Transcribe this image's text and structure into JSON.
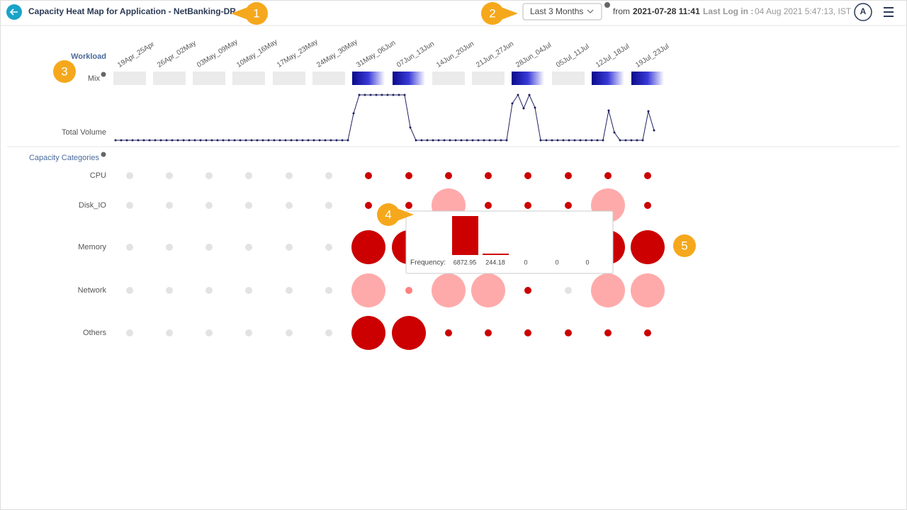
{
  "header": {
    "title": "Capacity Heat Map for Application - NetBanking-DR",
    "range": "Last 3 Months",
    "from_label": "from",
    "from": "2021-07-28 11:41",
    "last_login_label": "Last Log in :",
    "last_login": "04 Aug 2021 5:47:13, IST",
    "avatar": "A"
  },
  "callouts": [
    "1",
    "2",
    "3",
    "4",
    "5"
  ],
  "workload": {
    "title": "Workload",
    "mix": "Mix",
    "total_volume": "Total Volume",
    "weeks": [
      "19Apr_25Apr",
      "26Apr_02May",
      "03May_09May",
      "10May_16May",
      "17May_23May",
      "24May_30May",
      "31May_06Jun",
      "07Jun_13Jun",
      "14Jun_20Jun",
      "21Jun_27Jun",
      "28Jun_04Jul",
      "05Jul_11Jul",
      "12Jul_18Jul",
      "19Jul_23Jul"
    ]
  },
  "capacity": {
    "title": "Capacity Categories",
    "rows": [
      "CPU",
      "Disk_IO",
      "Memory",
      "Network",
      "Others"
    ]
  },
  "tooltip": {
    "label": "Frequency:",
    "values": [
      6872.95,
      244.18,
      0,
      0,
      0
    ]
  }
}
